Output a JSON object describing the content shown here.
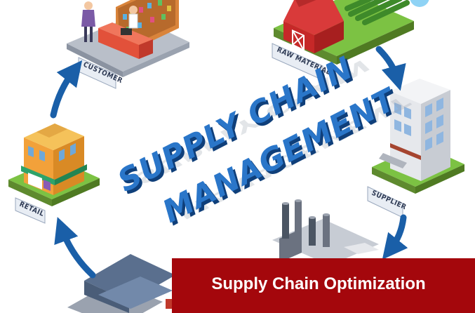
{
  "title": {
    "line1": "SUPPLY CHAIN",
    "line2": "MANAGEMENT"
  },
  "nodes": {
    "customer": "CUSTOMER",
    "raw_material": "RAW MATERIAL",
    "supplier": "SUPPLIER",
    "retail": "RETAIL"
  },
  "banner": {
    "text": "Supply Chain Optimization"
  },
  "colors": {
    "banner": "#a4070c",
    "arrow": "#1a5fa8",
    "title_blue": "#1d5fae",
    "grass": "#7cc243",
    "barn": "#cc2a2a"
  }
}
